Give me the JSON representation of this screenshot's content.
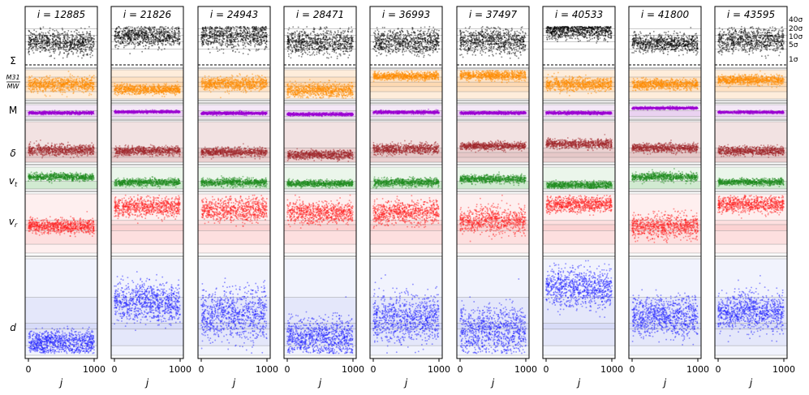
{
  "chart_data": {
    "type": "scatter",
    "panel_prefix": "i = ",
    "panels": [
      12885,
      21826,
      24943,
      28471,
      36993,
      37497,
      40533,
      41800,
      43595
    ],
    "xlabel": "j",
    "x_ticks": [
      "0",
      "1000"
    ],
    "xlim": [
      0,
      1000
    ],
    "points_per_strip": 900,
    "sigma_labels": [
      "40σ",
      "20σ",
      "10σ",
      "5σ",
      "1σ"
    ],
    "rows": [
      {
        "key": "sigma",
        "label": "Σ",
        "color": "#000000",
        "shade": "none",
        "centers": [
          0.5,
          0.7,
          0.7,
          0.5,
          0.52,
          0.55,
          0.86,
          0.48,
          0.57
        ],
        "spreads": [
          0.38,
          0.35,
          0.42,
          0.42,
          0.4,
          0.42,
          0.28,
          0.28,
          0.4
        ]
      },
      {
        "key": "m31mw",
        "label_num": "M31",
        "label_den": "MW",
        "color": "#ff8c00",
        "shade": "#fdd8b0",
        "centers": [
          0.5,
          0.33,
          0.52,
          0.3,
          0.78,
          0.8,
          0.5,
          0.5,
          0.65
        ],
        "spreads": [
          0.28,
          0.18,
          0.25,
          0.25,
          0.15,
          0.18,
          0.25,
          0.2,
          0.18
        ]
      },
      {
        "key": "m",
        "label": "M",
        "color": "#9b00d3",
        "shade": "#e6c9ee",
        "centers": [
          0.4,
          0.48,
          0.38,
          0.3,
          0.45,
          0.4,
          0.4,
          0.75,
          0.45
        ],
        "spreads": [
          0.12,
          0.1,
          0.12,
          0.12,
          0.12,
          0.12,
          0.12,
          0.1,
          0.1
        ]
      },
      {
        "key": "delta",
        "label": "δ",
        "color": "#a0262a",
        "shade": "#e6c6c6",
        "centers": [
          0.3,
          0.28,
          0.25,
          0.18,
          0.33,
          0.4,
          0.45,
          0.35,
          0.28
        ],
        "spreads": [
          0.15,
          0.12,
          0.12,
          0.12,
          0.14,
          0.1,
          0.12,
          0.12,
          0.12
        ]
      },
      {
        "key": "vt",
        "label": "v_t",
        "color": "#1e8c1e",
        "shade": "#c6e6c6",
        "centers": [
          0.55,
          0.3,
          0.3,
          0.25,
          0.3,
          0.45,
          0.18,
          0.55,
          0.32
        ],
        "spreads": [
          0.18,
          0.18,
          0.2,
          0.16,
          0.2,
          0.2,
          0.18,
          0.22,
          0.16
        ]
      },
      {
        "key": "vr",
        "label": "v_r",
        "color": "#ff2020",
        "shade": "#fbd0d0",
        "centers": [
          0.45,
          0.78,
          0.73,
          0.68,
          0.68,
          0.55,
          0.82,
          0.45,
          0.82
        ],
        "spreads": [
          0.13,
          0.18,
          0.22,
          0.2,
          0.22,
          0.25,
          0.15,
          0.22,
          0.15
        ]
      },
      {
        "key": "d",
        "label": "d",
        "color": "#2020ff",
        "shade": "#d8dcf8",
        "centers": [
          0.13,
          0.55,
          0.42,
          0.18,
          0.38,
          0.25,
          0.7,
          0.4,
          0.45
        ],
        "spreads": [
          0.14,
          0.22,
          0.3,
          0.22,
          0.28,
          0.28,
          0.22,
          0.22,
          0.22
        ]
      }
    ]
  }
}
